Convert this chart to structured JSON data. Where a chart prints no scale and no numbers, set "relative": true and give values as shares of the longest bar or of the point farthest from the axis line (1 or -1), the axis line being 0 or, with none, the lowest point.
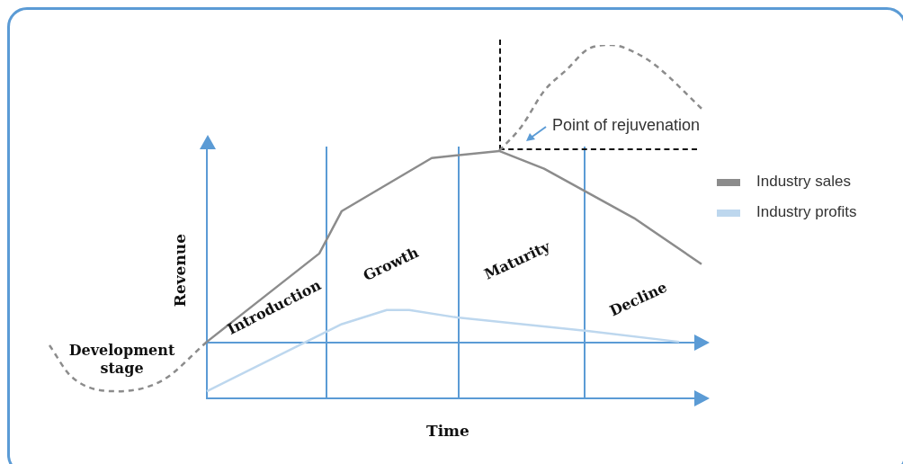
{
  "chart_data": {
    "type": "line",
    "relative": true,
    "xlabel": "Time",
    "ylabel": "Revenue",
    "legend": "right",
    "marker": "none",
    "categories": [
      null,
      null,
      null,
      null,
      null,
      null,
      null,
      null,
      null,
      null,
      null,
      null,
      null,
      null,
      null,
      null,
      null,
      null,
      null,
      null,
      null,
      null,
      null,
      null,
      null,
      null,
      null,
      null,
      null,
      null,
      null
    ],
    "series": [
      {
        "name": "Industry sales",
        "color": "#8c8c8c",
        "values": [
          null,
          null,
          null,
          null,
          null,
          null,
          null,
          null,
          0.16,
          null,
          null,
          null,
          null,
          0.41,
          0.53,
          null,
          null,
          null,
          0.68,
          null,
          null,
          0.7,
          null,
          0.65,
          null,
          null,
          null,
          0.51,
          null,
          null,
          0.38
        ]
      },
      {
        "name": "Industry profits",
        "color": "#bdd7ee",
        "values": [
          null,
          null,
          null,
          null,
          null,
          null,
          null,
          null,
          0.02,
          null,
          null,
          null,
          null,
          null,
          0.21,
          null,
          0.25,
          0.25,
          null,
          0.23,
          null,
          null,
          null,
          null,
          null,
          0.19,
          null,
          null,
          null,
          0.16,
          null
        ]
      },
      {
        "color": "#8c8c8c",
        "line_style": "dashed",
        "values": [
          null,
          0.15,
          0.06,
          null,
          0.02,
          null,
          0.05,
          null,
          0.16,
          null,
          null,
          null,
          null,
          null,
          null,
          null,
          null,
          null,
          null,
          null,
          null,
          null,
          null,
          null,
          null,
          null,
          null,
          null,
          null,
          null,
          null
        ]
      },
      {
        "color": "#8c8c8c",
        "line_style": "dashed",
        "values": [
          null,
          null,
          null,
          null,
          null,
          null,
          null,
          null,
          null,
          null,
          null,
          null,
          null,
          null,
          null,
          null,
          null,
          null,
          null,
          null,
          null,
          0.7,
          0.77,
          0.87,
          0.93,
          0.99,
          1.0,
          0.98,
          0.94,
          null,
          0.82
        ]
      }
    ],
    "annotations": [
      "Development stage",
      "Introduction",
      "Growth",
      "Maturity",
      "Decline",
      "Point of rejuvenation"
    ]
  }
}
